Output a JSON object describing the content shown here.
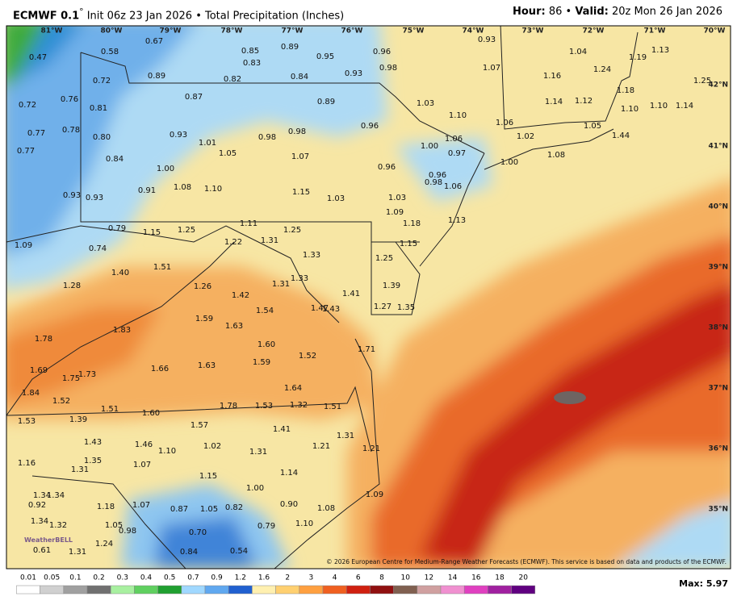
{
  "header": {
    "model": "ECMWF 0.1",
    "degree": "°",
    "init": "Init 06z 23 Jan 2026",
    "separator": "•",
    "product": "Total Precipitation (Inches)",
    "hour_label": "Hour:",
    "hour": "86",
    "separator2": "•",
    "valid_label": "Valid:",
    "valid": "20z Mon 26 Jan 2026"
  },
  "map": {
    "lon_labels": [
      "81°W",
      "80°W",
      "79°W",
      "78°W",
      "77°W",
      "76°W",
      "75°W",
      "74°W",
      "73°W",
      "72°W",
      "71°W",
      "70°W"
    ],
    "lat_labels": [
      "42°N",
      "41°N",
      "40°N",
      "39°N",
      "38°N",
      "37°N",
      "36°N",
      "35°N"
    ],
    "values": [
      "0.47",
      "0.58",
      "0.67",
      "0.85",
      "0.83",
      "0.89",
      "0.95",
      "0.96",
      "0.98",
      "0.93",
      "0.93",
      "1.07",
      "1.04",
      "1.19",
      "1.13",
      "1.24",
      "1.16",
      "1.25",
      "0.72",
      "0.89",
      "0.82",
      "0.84",
      "0.72",
      "0.76",
      "0.81",
      "0.87",
      "0.89",
      "1.03",
      "1.10",
      "1.14",
      "1.12",
      "1.18",
      "1.10",
      "1.10",
      "1.14",
      "0.77",
      "0.78",
      "0.80",
      "0.93",
      "1.01",
      "0.98",
      "0.98",
      "0.96",
      "1.06",
      "1.06",
      "1.02",
      "1.05",
      "1.44",
      "0.77",
      "0.84",
      "1.05",
      "1.07",
      "1.00",
      "0.97",
      "1.08",
      "1.00",
      "1.00",
      "0.96",
      "0.96",
      "0.98",
      "1.06",
      "0.93",
      "0.93",
      "0.91",
      "1.08",
      "1.10",
      "1.15",
      "1.03",
      "1.03",
      "1.09",
      "1.13",
      "1.18",
      "1.11",
      "0.79",
      "1.15",
      "1.25",
      "1.25",
      "1.09",
      "1.22",
      "1.31",
      "1.15",
      "0.74",
      "1.33",
      "1.25",
      "1.51",
      "1.40",
      "1.28",
      "1.33",
      "1.31",
      "1.26",
      "1.39",
      "1.42",
      "1.41",
      "1.54",
      "1.47",
      "1.43",
      "1.27",
      "1.35",
      "1.59",
      "1.63",
      "1.83",
      "1.78",
      "1.60",
      "1.52",
      "1.71",
      "1.69",
      "1.75",
      "1.73",
      "1.66",
      "1.63",
      "1.59",
      "1.64",
      "1.84",
      "1.52",
      "1.51",
      "1.60",
      "1.78",
      "1.53",
      "1.32",
      "1.51",
      "1.53",
      "1.39",
      "1.57",
      "1.41",
      "1.43",
      "1.46",
      "1.02",
      "1.10",
      "1.31",
      "1.21",
      "1.31",
      "1.21",
      "1.16",
      "1.35",
      "1.31",
      "1.07",
      "1.15",
      "1.14",
      "1.34",
      "1.34",
      "0.92",
      "1.00",
      "1.09",
      "1.18",
      "1.07",
      "0.87",
      "1.05",
      "0.82",
      "0.90",
      "1.08",
      "1.34",
      "1.32",
      "1.05",
      "0.98",
      "0.70",
      "0.79",
      "1.10",
      "1.24",
      "0.61",
      "1.31",
      "0.84",
      "0.54"
    ],
    "logo": "WeatherBELL",
    "copyright": "© 2026 European Centre for Medium-Range Weather Forecasts (ECMWF). This service is based on data and products of the ECMWF."
  },
  "colorbar": {
    "labels": [
      "0.01",
      "0.05",
      "0.1",
      "0.2",
      "0.3",
      "0.4",
      "0.5",
      "0.7",
      "0.9",
      "1.2",
      "1.6",
      "2",
      "3",
      "4",
      "6",
      "8",
      "10",
      "12",
      "14",
      "16",
      "18",
      "20"
    ],
    "colors": [
      "#ffffff",
      "#d0d0d0",
      "#a0a0a0",
      "#707070",
      "#a8f0a0",
      "#60d060",
      "#20a030",
      "#a0d8ff",
      "#60a8f0",
      "#2060d0",
      "#fff0b0",
      "#ffd070",
      "#ffa040",
      "#f06020",
      "#d02010",
      "#901010",
      "#806050",
      "#d0a0a0",
      "#f090d0",
      "#e040c0",
      "#a020a0",
      "#600080"
    ],
    "max": "Max: 5.97"
  }
}
